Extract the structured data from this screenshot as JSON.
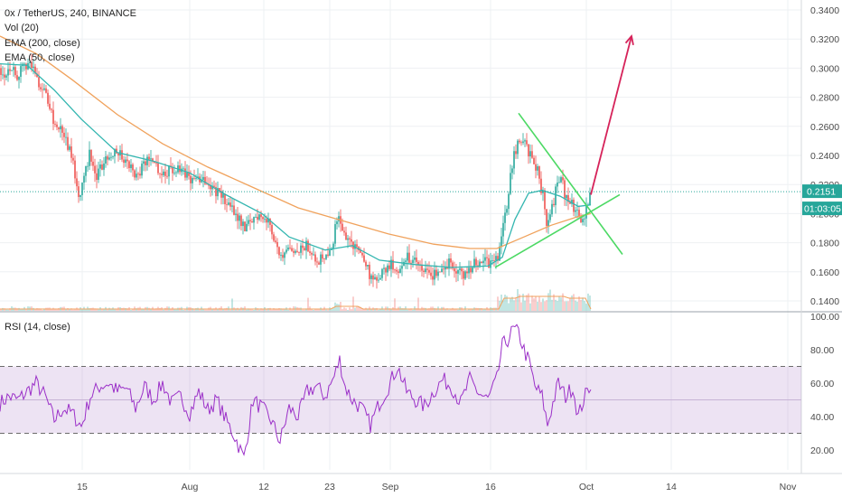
{
  "legend": {
    "pair_title": "0x / TetherUS, 240, BINANCE",
    "vol": "Vol (20)",
    "ema200": "EMA (200, close)",
    "ema50": "EMA (50, close)",
    "rsi": "RSI (14, close)"
  },
  "colors": {
    "candle_up": "#26a69a",
    "candle_down": "#ef5350",
    "ema50": "#33b6b0",
    "ema200": "#f0a25c",
    "rsi_line": "#9b30c8",
    "rsi_band": "#6a1b9a",
    "trendline": "#4cd964",
    "arrow": "#d6235a",
    "price_badge": "#26a69a"
  },
  "chart_data": [
    {
      "type": "candlestick",
      "title": "0x / TetherUS, 240, BINANCE",
      "x_ticks": [
        "15",
        "Aug",
        "12",
        "23",
        "Sep",
        "16",
        "Oct",
        "14",
        "Nov"
      ],
      "y_ticks": [
        "0.3400",
        "0.3200",
        "0.3000",
        "0.2800",
        "0.2600",
        "0.2400",
        "0.2200",
        "0.2000",
        "0.1800",
        "0.1600",
        "0.1400"
      ],
      "ylim": [
        0.13,
        0.345
      ],
      "close_path": [
        [
          0,
          0.3
        ],
        [
          6,
          0.296
        ],
        [
          12,
          0.302
        ],
        [
          18,
          0.295
        ],
        [
          24,
          0.298
        ],
        [
          30,
          0.304
        ],
        [
          36,
          0.3
        ],
        [
          42,
          0.292
        ],
        [
          48,
          0.285
        ],
        [
          54,
          0.276
        ],
        [
          60,
          0.262
        ],
        [
          66,
          0.258
        ],
        [
          72,
          0.253
        ],
        [
          78,
          0.242
        ],
        [
          84,
          0.224
        ],
        [
          88,
          0.212
        ],
        [
          94,
          0.23
        ],
        [
          100,
          0.243
        ],
        [
          106,
          0.222
        ],
        [
          112,
          0.232
        ],
        [
          120,
          0.24
        ],
        [
          128,
          0.245
        ],
        [
          136,
          0.238
        ],
        [
          144,
          0.232
        ],
        [
          152,
          0.225
        ],
        [
          160,
          0.235
        ],
        [
          168,
          0.24
        ],
        [
          176,
          0.23
        ],
        [
          184,
          0.228
        ],
        [
          192,
          0.231
        ],
        [
          200,
          0.228
        ],
        [
          208,
          0.226
        ],
        [
          216,
          0.222
        ],
        [
          224,
          0.226
        ],
        [
          232,
          0.22
        ],
        [
          240,
          0.215
        ],
        [
          248,
          0.21
        ],
        [
          256,
          0.203
        ],
        [
          264,
          0.198
        ],
        [
          272,
          0.19
        ],
        [
          280,
          0.196
        ],
        [
          288,
          0.2
        ],
        [
          296,
          0.195
        ],
        [
          304,
          0.184
        ],
        [
          312,
          0.166
        ],
        [
          320,
          0.175
        ],
        [
          328,
          0.17
        ],
        [
          336,
          0.178
        ],
        [
          344,
          0.176
        ],
        [
          352,
          0.168
        ],
        [
          360,
          0.172
        ],
        [
          368,
          0.18
        ],
        [
          374,
          0.198
        ],
        [
          380,
          0.188
        ],
        [
          388,
          0.18
        ],
        [
          396,
          0.176
        ],
        [
          404,
          0.168
        ],
        [
          410,
          0.156
        ],
        [
          416,
          0.152
        ],
        [
          424,
          0.16
        ],
        [
          432,
          0.165
        ],
        [
          440,
          0.162
        ],
        [
          448,
          0.17
        ],
        [
          456,
          0.168
        ],
        [
          464,
          0.164
        ],
        [
          472,
          0.16
        ],
        [
          480,
          0.158
        ],
        [
          488,
          0.163
        ],
        [
          496,
          0.166
        ],
        [
          504,
          0.161
        ],
        [
          512,
          0.158
        ],
        [
          520,
          0.163
        ],
        [
          528,
          0.166
        ],
        [
          536,
          0.168
        ],
        [
          544,
          0.165
        ],
        [
          550,
          0.168
        ],
        [
          554,
          0.18
        ],
        [
          558,
          0.196
        ],
        [
          562,
          0.21
        ],
        [
          566,
          0.232
        ],
        [
          570,
          0.242
        ],
        [
          574,
          0.252
        ],
        [
          578,
          0.248
        ],
        [
          582,
          0.25
        ],
        [
          586,
          0.24
        ],
        [
          590,
          0.238
        ],
        [
          594,
          0.232
        ],
        [
          598,
          0.22
        ],
        [
          602,
          0.21
        ],
        [
          606,
          0.19
        ],
        [
          610,
          0.2
        ],
        [
          614,
          0.212
        ],
        [
          618,
          0.226
        ],
        [
          622,
          0.222
        ],
        [
          626,
          0.21
        ],
        [
          630,
          0.212
        ],
        [
          634,
          0.206
        ],
        [
          638,
          0.2
        ],
        [
          642,
          0.198
        ],
        [
          646,
          0.196
        ],
        [
          650,
          0.206
        ],
        [
          654,
          0.215
        ]
      ],
      "ema50_path": [
        [
          0,
          0.303
        ],
        [
          30,
          0.302
        ],
        [
          60,
          0.285
        ],
        [
          90,
          0.265
        ],
        [
          130,
          0.242
        ],
        [
          170,
          0.236
        ],
        [
          210,
          0.228
        ],
        [
          250,
          0.213
        ],
        [
          290,
          0.2
        ],
        [
          320,
          0.184
        ],
        [
          360,
          0.175
        ],
        [
          390,
          0.178
        ],
        [
          420,
          0.168
        ],
        [
          460,
          0.165
        ],
        [
          500,
          0.163
        ],
        [
          540,
          0.164
        ],
        [
          556,
          0.17
        ],
        [
          570,
          0.196
        ],
        [
          585,
          0.214
        ],
        [
          600,
          0.216
        ],
        [
          620,
          0.212
        ],
        [
          640,
          0.205
        ],
        [
          654,
          0.206
        ]
      ],
      "ema200_path": [
        [
          0,
          0.322
        ],
        [
          40,
          0.31
        ],
        [
          80,
          0.292
        ],
        [
          130,
          0.268
        ],
        [
          180,
          0.248
        ],
        [
          230,
          0.232
        ],
        [
          280,
          0.218
        ],
        [
          330,
          0.204
        ],
        [
          380,
          0.195
        ],
        [
          430,
          0.186
        ],
        [
          480,
          0.179
        ],
        [
          520,
          0.176
        ],
        [
          550,
          0.176
        ],
        [
          580,
          0.184
        ],
        [
          610,
          0.192
        ],
        [
          640,
          0.198
        ],
        [
          654,
          0.2
        ]
      ],
      "drawings": {
        "upper_trendline": [
          [
            574,
            0.269
          ],
          [
            689,
            0.172
          ]
        ],
        "lower_trendline": [
          [
            548,
            0.163
          ],
          [
            686,
            0.213
          ]
        ],
        "arrow": [
          [
            654,
            0.213
          ],
          [
            699,
            0.322
          ]
        ]
      },
      "last_price": "0.2151",
      "countdown": "01:03:05"
    },
    {
      "type": "line",
      "title": "RSI (14, close)",
      "y_ticks": [
        "100.00",
        "80.00",
        "60.00",
        "40.00",
        "20.00"
      ],
      "ylim": [
        10,
        100
      ],
      "band": [
        30,
        70
      ],
      "mid_level": 50,
      "values_path": [
        [
          0,
          48
        ],
        [
          10,
          52
        ],
        [
          20,
          50
        ],
        [
          30,
          55
        ],
        [
          40,
          60
        ],
        [
          50,
          52
        ],
        [
          60,
          38
        ],
        [
          70,
          45
        ],
        [
          80,
          42
        ],
        [
          90,
          34
        ],
        [
          100,
          52
        ],
        [
          110,
          58
        ],
        [
          120,
          60
        ],
        [
          130,
          55
        ],
        [
          140,
          57
        ],
        [
          150,
          45
        ],
        [
          160,
          58
        ],
        [
          170,
          50
        ],
        [
          180,
          60
        ],
        [
          190,
          48
        ],
        [
          200,
          52
        ],
        [
          210,
          42
        ],
        [
          220,
          55
        ],
        [
          230,
          44
        ],
        [
          240,
          50
        ],
        [
          250,
          38
        ],
        [
          260,
          28
        ],
        [
          270,
          15
        ],
        [
          280,
          50
        ],
        [
          290,
          45
        ],
        [
          300,
          38
        ],
        [
          310,
          25
        ],
        [
          320,
          45
        ],
        [
          330,
          40
        ],
        [
          340,
          55
        ],
        [
          350,
          58
        ],
        [
          360,
          52
        ],
        [
          370,
          64
        ],
        [
          376,
          74
        ],
        [
          382,
          58
        ],
        [
          390,
          50
        ],
        [
          400,
          45
        ],
        [
          410,
          35
        ],
        [
          420,
          48
        ],
        [
          430,
          58
        ],
        [
          440,
          70
        ],
        [
          450,
          55
        ],
        [
          460,
          50
        ],
        [
          470,
          46
        ],
        [
          480,
          55
        ],
        [
          490,
          62
        ],
        [
          500,
          58
        ],
        [
          510,
          48
        ],
        [
          520,
          62
        ],
        [
          530,
          54
        ],
        [
          540,
          50
        ],
        [
          550,
          62
        ],
        [
          556,
          82
        ],
        [
          562,
          86
        ],
        [
          568,
          92
        ],
        [
          574,
          90
        ],
        [
          580,
          80
        ],
        [
          586,
          72
        ],
        [
          592,
          58
        ],
        [
          600,
          52
        ],
        [
          606,
          35
        ],
        [
          612,
          48
        ],
        [
          618,
          60
        ],
        [
          626,
          52
        ],
        [
          634,
          58
        ],
        [
          640,
          40
        ],
        [
          646,
          50
        ],
        [
          654,
          60
        ]
      ]
    }
  ]
}
